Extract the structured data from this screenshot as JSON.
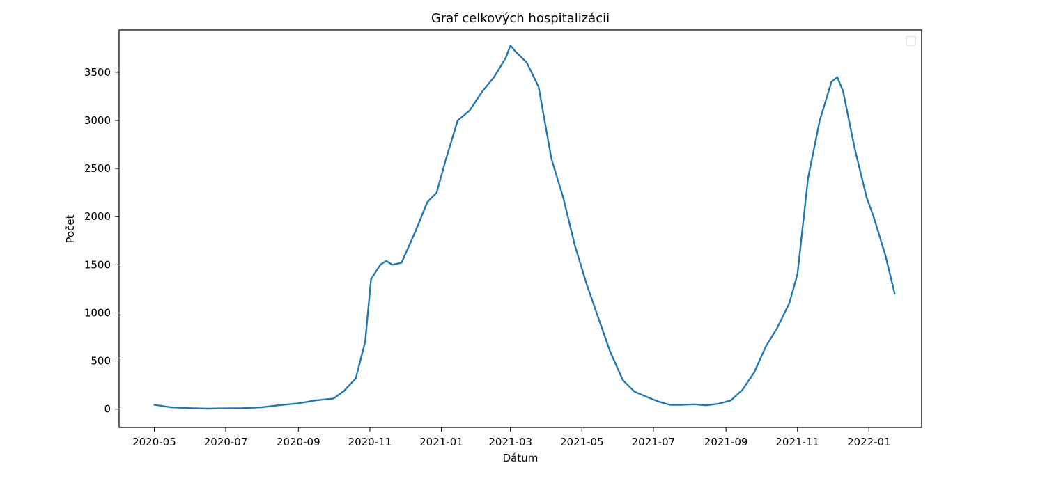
{
  "chart_data": {
    "type": "line",
    "title": "Graf celkových hospitalizácii",
    "xlabel": "Dátum",
    "ylabel": "Počet",
    "x_ticks": [
      "2020-05",
      "2020-07",
      "2020-09",
      "2020-11",
      "2021-01",
      "2021-03",
      "2021-05",
      "2021-07",
      "2021-09",
      "2021-11",
      "2022-01"
    ],
    "y_ticks": [
      0,
      500,
      1000,
      1500,
      2000,
      2500,
      3000,
      3500
    ],
    "xlim": [
      "2020-04-01",
      "2022-02-15"
    ],
    "ylim": [
      -190,
      3940
    ],
    "grid": false,
    "legend": {
      "placement": "top-right",
      "entries": []
    },
    "color": "#1f77b4",
    "series": [
      {
        "x": [
          "2020-05-01",
          "2020-05-15",
          "2020-06-01",
          "2020-06-15",
          "2020-07-01",
          "2020-07-15",
          "2020-08-01",
          "2020-08-15",
          "2020-09-01",
          "2020-09-15",
          "2020-10-01",
          "2020-10-10",
          "2020-10-20",
          "2020-10-28",
          "2020-11-02",
          "2020-11-10",
          "2020-11-15",
          "2020-11-20",
          "2020-11-28",
          "2020-12-10",
          "2020-12-20",
          "2020-12-28",
          "2021-01-05",
          "2021-01-15",
          "2021-01-25",
          "2021-02-05",
          "2021-02-15",
          "2021-02-25",
          "2021-03-01",
          "2021-03-05",
          "2021-03-15",
          "2021-03-25",
          "2021-04-05",
          "2021-04-15",
          "2021-04-25",
          "2021-05-05",
          "2021-05-15",
          "2021-05-25",
          "2021-06-05",
          "2021-06-15",
          "2021-06-25",
          "2021-07-05",
          "2021-07-15",
          "2021-07-25",
          "2021-08-05",
          "2021-08-15",
          "2021-08-25",
          "2021-09-05",
          "2021-09-15",
          "2021-09-25",
          "2021-10-05",
          "2021-10-15",
          "2021-10-25",
          "2021-11-01",
          "2021-11-10",
          "2021-11-20",
          "2021-11-30",
          "2021-12-05",
          "2021-12-10",
          "2021-12-20",
          "2021-12-30",
          "2022-01-05",
          "2022-01-15",
          "2022-01-23"
        ],
        "y": [
          45,
          20,
          10,
          5,
          8,
          10,
          20,
          40,
          60,
          90,
          110,
          190,
          320,
          700,
          1350,
          1500,
          1540,
          1500,
          1520,
          1850,
          2150,
          2250,
          2600,
          3000,
          3100,
          3300,
          3450,
          3650,
          3780,
          3720,
          3600,
          3350,
          2600,
          2200,
          1700,
          1300,
          950,
          600,
          300,
          180,
          130,
          80,
          45,
          45,
          50,
          40,
          55,
          90,
          200,
          380,
          650,
          850,
          1100,
          1400,
          2400,
          3000,
          3400,
          3450,
          3300,
          2700,
          2200,
          2000,
          1600,
          1200
        ]
      }
    ]
  }
}
